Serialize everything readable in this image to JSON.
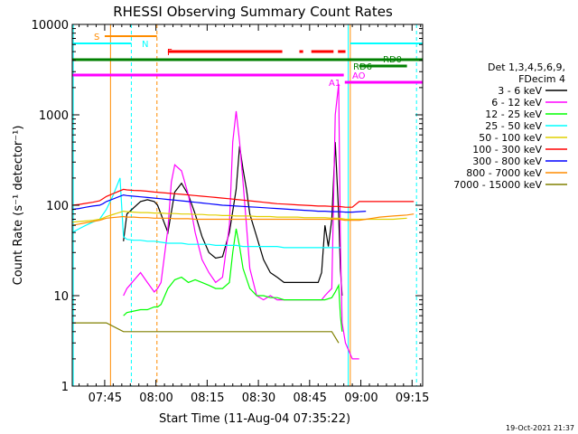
{
  "chart_data": {
    "type": "line",
    "title": "RHESSI Observing Summary Count Rates",
    "xlabel": "Start Time (11-Aug-04 07:35:22)",
    "ylabel": "Count Rate (s⁻¹ detector⁻¹)",
    "yscale": "log",
    "ylim": [
      1,
      10000
    ],
    "xlim_minutes": [
      0,
      102.6
    ],
    "x_tick_labels": [
      {
        "label": "07:45",
        "minute": 9.6
      },
      {
        "label": "08:00",
        "minute": 24.6
      },
      {
        "label": "08:15",
        "minute": 39.6
      },
      {
        "label": "08:30",
        "minute": 54.6
      },
      {
        "label": "08:45",
        "minute": 69.6
      },
      {
        "label": "09:00",
        "minute": 84.6
      },
      {
        "label": "09:15",
        "minute": 99.6
      }
    ],
    "y_tick_labels": [
      {
        "label": "1",
        "value": 1
      },
      {
        "label": "10",
        "value": 10
      },
      {
        "label": "100",
        "value": 100
      },
      {
        "label": "1000",
        "value": 1000
      },
      {
        "label": "10000",
        "value": 10000
      }
    ],
    "legend_header": [
      "Det 1,3,4,5,6,9,",
      "FDecim 4"
    ],
    "legend_placement": "right",
    "series": [
      {
        "name": "3 - 6 keV",
        "color": "#000000",
        "x": [
          15,
          16,
          20,
          22,
          24,
          25,
          28,
          30,
          32,
          34,
          36,
          38,
          40,
          42,
          44,
          46,
          48,
          49,
          50,
          51,
          52,
          54,
          56,
          58,
          60,
          62,
          64,
          66,
          68,
          70,
          72,
          73,
          74,
          75,
          76,
          77,
          78,
          78.5,
          79
        ],
        "y": [
          40,
          80,
          110,
          115,
          110,
          100,
          50,
          140,
          175,
          130,
          80,
          45,
          30,
          26,
          27,
          50,
          150,
          450,
          250,
          150,
          80,
          45,
          25,
          18,
          16,
          14,
          14,
          14,
          14,
          14,
          14,
          18,
          60,
          35,
          70,
          500,
          80,
          20,
          10
        ]
      },
      {
        "name": "6 - 12 keV",
        "color": "#ff00ff",
        "x": [
          15,
          16,
          20,
          22,
          24,
          25,
          26,
          28,
          29,
          30,
          32,
          34,
          36,
          38,
          40,
          42,
          44,
          46,
          47,
          48,
          49,
          50,
          51,
          52,
          54,
          56,
          58,
          60,
          62,
          64,
          66,
          68,
          70,
          72,
          73,
          74,
          75,
          76,
          77,
          78,
          78.5,
          79,
          80,
          82,
          84
        ],
        "y": [
          10,
          12,
          18,
          14,
          11,
          12,
          14,
          55,
          180,
          280,
          240,
          130,
          50,
          25,
          18,
          14,
          16,
          60,
          500,
          1100,
          500,
          180,
          60,
          20,
          10,
          9,
          10,
          9,
          9,
          9,
          9,
          9,
          9,
          9,
          9,
          10,
          11,
          12,
          1000,
          2200,
          40,
          5,
          3,
          2,
          2
        ]
      },
      {
        "name": "12 - 25 keV",
        "color": "#00ff00",
        "x": [
          15,
          16,
          20,
          22,
          24,
          25,
          26,
          28,
          30,
          32,
          34,
          36,
          38,
          40,
          42,
          44,
          46,
          47,
          48,
          49,
          50,
          52,
          54,
          56,
          58,
          60,
          62,
          64,
          66,
          68,
          70,
          72,
          74,
          76,
          77,
          78,
          78.5,
          79
        ],
        "y": [
          6,
          6.5,
          7,
          7,
          7.5,
          7.5,
          8,
          12,
          15,
          16,
          14,
          15,
          14,
          13,
          12,
          12,
          14,
          30,
          55,
          35,
          20,
          12,
          10,
          10,
          9.5,
          9.5,
          9,
          9,
          9,
          9,
          9,
          9,
          9,
          9.5,
          11,
          13,
          6,
          4
        ]
      },
      {
        "name": "25 - 50 keV",
        "color": "#00ffff",
        "x": [
          0,
          2,
          4,
          6,
          8,
          10,
          12,
          14,
          15,
          16,
          18,
          20,
          22,
          24,
          26,
          28,
          30,
          32,
          34,
          36,
          38,
          40,
          42,
          44,
          46,
          48,
          50,
          52,
          54,
          56,
          58,
          60,
          62,
          64,
          66,
          68,
          70,
          72,
          74,
          76,
          78,
          78.5
        ],
        "y": [
          50,
          55,
          60,
          65,
          70,
          90,
          130,
          200,
          45,
          42,
          41,
          41,
          40,
          40,
          39,
          38,
          38,
          38,
          37,
          37,
          37,
          37,
          36,
          36,
          36,
          36,
          35,
          35,
          35,
          35,
          35,
          35,
          34,
          34,
          34,
          34,
          34,
          34,
          34,
          34,
          34,
          34
        ]
      },
      {
        "name": "50 - 100 keV",
        "color": "#e0d000",
        "x": [
          0,
          2,
          4,
          6,
          8,
          9,
          10,
          15,
          16,
          18,
          20,
          22,
          24,
          26,
          28,
          30,
          32,
          34,
          36,
          38,
          40,
          42,
          44,
          46,
          48,
          50,
          52,
          54,
          56,
          58,
          60,
          62,
          64,
          66,
          68,
          70,
          72,
          74,
          76,
          78,
          80,
          82,
          84,
          86,
          88,
          90,
          92,
          94,
          96,
          98
        ],
        "y": [
          65,
          66,
          67,
          68,
          70,
          72,
          75,
          86,
          85,
          84,
          83,
          83,
          82,
          82,
          81,
          81,
          80,
          80,
          79,
          79,
          78,
          78,
          77,
          77,
          76,
          76,
          76,
          75,
          75,
          75,
          74,
          74,
          74,
          74,
          73,
          73,
          73,
          73,
          72,
          72,
          70,
          70,
          70,
          70,
          70,
          70,
          70,
          70,
          71,
          72
        ]
      },
      {
        "name": "100 - 300 keV",
        "color": "#ff0000",
        "x": [
          0,
          2,
          4,
          6,
          8,
          9,
          10,
          15,
          16,
          18,
          20,
          22,
          24,
          26,
          28,
          30,
          32,
          34,
          36,
          38,
          40,
          42,
          44,
          46,
          48,
          50,
          52,
          54,
          56,
          58,
          60,
          62,
          64,
          66,
          68,
          70,
          72,
          74,
          76,
          78,
          80,
          82,
          84,
          86,
          88,
          90,
          92,
          94,
          96,
          98,
          100
        ],
        "y": [
          100,
          102,
          105,
          108,
          112,
          118,
          125,
          150,
          148,
          146,
          145,
          143,
          140,
          138,
          136,
          134,
          132,
          130,
          128,
          126,
          124,
          122,
          120,
          118,
          116,
          114,
          112,
          110,
          108,
          106,
          104,
          103,
          102,
          101,
          100,
          99,
          98,
          98,
          97,
          97,
          95,
          95,
          110,
          110,
          110,
          110,
          110,
          110,
          110,
          110,
          110
        ]
      },
      {
        "name": "300 - 800 keV",
        "color": "#0000ff",
        "x": [
          0,
          2,
          4,
          6,
          8,
          9,
          10,
          15,
          16,
          18,
          20,
          22,
          24,
          26,
          28,
          30,
          32,
          34,
          36,
          38,
          40,
          42,
          44,
          46,
          48,
          50,
          52,
          54,
          56,
          58,
          60,
          62,
          64,
          66,
          68,
          70,
          72,
          74,
          76,
          78,
          80,
          82,
          84,
          86
        ],
        "y": [
          90,
          92,
          95,
          98,
          100,
          104,
          110,
          130,
          128,
          126,
          124,
          122,
          120,
          118,
          116,
          114,
          112,
          110,
          108,
          106,
          104,
          102,
          100,
          99,
          98,
          97,
          96,
          95,
          94,
          93,
          92,
          91,
          90,
          89,
          88,
          87,
          86,
          86,
          85,
          85,
          84,
          84,
          85,
          86
        ]
      },
      {
        "name": "800 - 7000 keV",
        "color": "#ff8c00",
        "x": [
          0,
          2,
          4,
          6,
          8,
          9,
          10,
          15,
          16,
          18,
          20,
          22,
          24,
          26,
          28,
          30,
          32,
          34,
          36,
          38,
          40,
          42,
          44,
          46,
          48,
          50,
          52,
          54,
          56,
          58,
          60,
          62,
          64,
          66,
          68,
          70,
          72,
          74,
          76,
          78,
          80,
          82,
          84,
          86,
          88,
          90,
          92,
          94,
          96,
          98,
          100
        ],
        "y": [
          60,
          62,
          64,
          66,
          68,
          70,
          72,
          75,
          74,
          74,
          73,
          73,
          72,
          72,
          72,
          71,
          71,
          71,
          70,
          70,
          70,
          70,
          70,
          70,
          70,
          70,
          70,
          70,
          70,
          70,
          70,
          70,
          70,
          70,
          70,
          70,
          70,
          70,
          70,
          70,
          68,
          68,
          68,
          70,
          72,
          74,
          75,
          76,
          77,
          78,
          80
        ]
      },
      {
        "name": "7000 - 15000 keV",
        "color": "#808000",
        "x": [
          0,
          2,
          4,
          6,
          8,
          9,
          10,
          15,
          16,
          18,
          20,
          22,
          24,
          26,
          28,
          30,
          32,
          34,
          36,
          38,
          40,
          42,
          44,
          46,
          48,
          50,
          52,
          54,
          56,
          58,
          60,
          62,
          64,
          66,
          68,
          70,
          72,
          74,
          76,
          78
        ],
        "y": [
          5,
          5,
          5,
          5,
          5,
          5,
          5,
          4,
          4,
          4,
          4,
          4,
          4,
          4,
          4,
          4,
          4,
          4,
          4,
          4,
          4,
          4,
          4,
          4,
          4,
          4,
          4,
          4,
          4,
          4,
          4,
          4,
          4,
          4,
          4,
          4,
          4,
          4,
          4,
          3
        ]
      }
    ],
    "annotations": [
      "S",
      "N",
      "F",
      "RD0",
      "RD6",
      "AO",
      "A1"
    ],
    "footer_date": "19-Oct-2021 21:37"
  }
}
